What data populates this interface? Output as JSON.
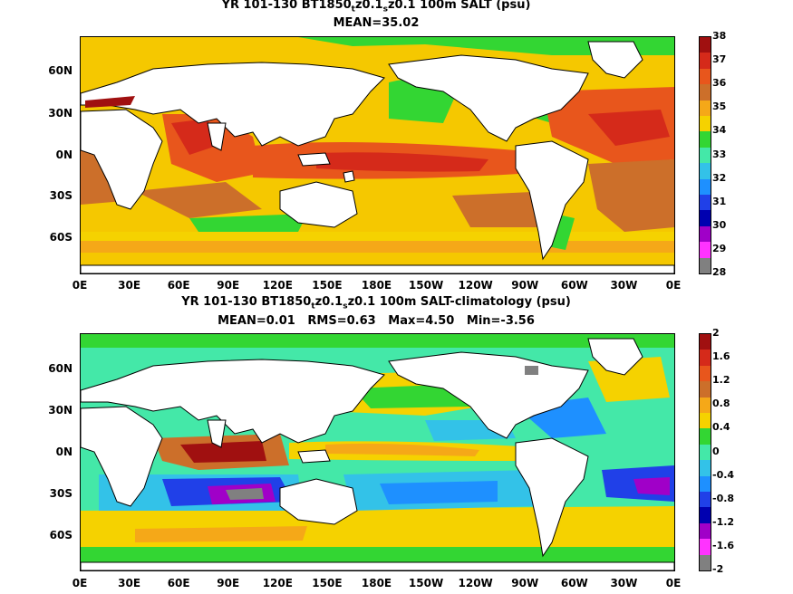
{
  "map1": {
    "title_line1": "YR 101-130 BT1850",
    "title_sub_t": "t",
    "title_mid": "z0.1",
    "title_sub_s": "s",
    "title_tail": "z0.1 100m SALT (psu)",
    "title_line2": "MEAN=35.02",
    "colorbar": {
      "ticks": [
        "38",
        "37",
        "36",
        "35",
        "34",
        "33",
        "32",
        "31",
        "30",
        "29",
        "28"
      ],
      "colors": [
        "#a01010",
        "#d52a1a",
        "#e8561c",
        "#cc6f2a",
        "#f5a818",
        "#f5d200",
        "#33d633",
        "#44e8a8",
        "#33c2e8",
        "#1e90ff",
        "#2040e8",
        "#0000b0",
        "#a000c8",
        "#ff33ff",
        "#808080"
      ]
    }
  },
  "map2": {
    "title_line1": "YR 101-130 BT1850",
    "title_sub_t": "t",
    "title_mid": "z0.1",
    "title_sub_s": "s",
    "title_tail": "z0.1 100m SALT-climatology (psu)",
    "title_line2": "MEAN=0.01   RMS=0.63   Max=4.50   Min=-3.56",
    "colorbar": {
      "ticks": [
        "2",
        "1.6",
        "1.2",
        "0.8",
        "0.4",
        "0",
        "-0.4",
        "-0.8",
        "-1.2",
        "-1.6",
        "-2"
      ],
      "colors": [
        "#a01010",
        "#d52a1a",
        "#e8561c",
        "#cc6f2a",
        "#f5a818",
        "#f5d200",
        "#33d633",
        "#44e8a8",
        "#33c2e8",
        "#1e90ff",
        "#2040e8",
        "#0000b0",
        "#a000c8",
        "#ff33ff",
        "#808080"
      ]
    }
  },
  "lat_labels": [
    "60N",
    "30N",
    "0N",
    "30S",
    "60S"
  ],
  "lon_labels": [
    "0E",
    "30E",
    "60E",
    "90E",
    "120E",
    "150E",
    "180E",
    "150W",
    "120W",
    "90W",
    "60W",
    "30W",
    "0E"
  ]
}
